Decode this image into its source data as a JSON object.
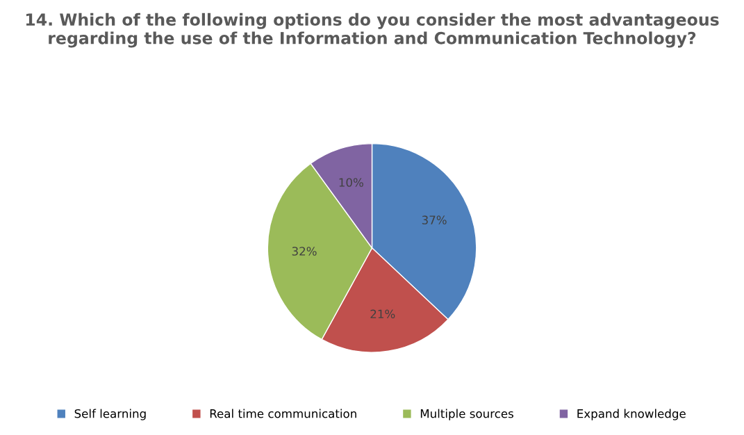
{
  "chart_data": {
    "type": "pie",
    "title": "14. Which of the following options do you consider the most advantageous regarding the use of the Information and Communication Technology?",
    "categories": [
      "Self learning",
      "Real time communication",
      "Multiple sources",
      "Expand knowledge"
    ],
    "values": [
      37,
      21,
      32,
      10
    ],
    "colors": [
      "#4f81bd",
      "#c0504d",
      "#9bbb59",
      "#8064a2"
    ],
    "value_labels": [
      "37%",
      "21%",
      "32%",
      "10%"
    ],
    "legend": "bottom"
  }
}
